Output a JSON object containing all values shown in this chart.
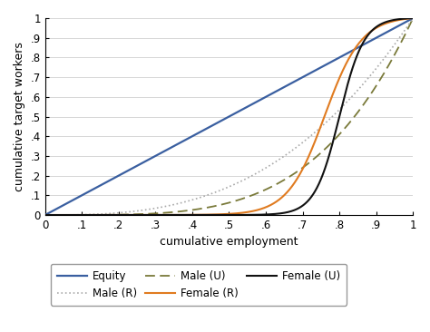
{
  "title": "",
  "xlabel": "cumulative employment",
  "ylabel": "cumulative target workers",
  "xlim": [
    0,
    1
  ],
  "ylim": [
    0,
    1
  ],
  "xticks": [
    0,
    0.1,
    0.2,
    0.3,
    0.4,
    0.5,
    0.6,
    0.7,
    0.8,
    0.9,
    1.0
  ],
  "yticks": [
    0,
    0.1,
    0.2,
    0.3,
    0.4,
    0.5,
    0.6,
    0.7,
    0.8,
    0.9,
    1.0
  ],
  "xtick_labels": [
    "0",
    ".1",
    ".2",
    ".3",
    ".4",
    ".5",
    ".6",
    ".7",
    ".8",
    ".9",
    "1"
  ],
  "ytick_labels": [
    "0",
    ".1",
    ".2",
    ".3",
    ".4",
    ".5",
    ".6",
    ".7",
    ".8",
    ".9",
    "1"
  ],
  "equity_color": "#3a5fa0",
  "male_r_color": "#aaaaaa",
  "male_u_color": "#7a7a3a",
  "female_r_color": "#e07b20",
  "female_u_color": "#111111",
  "grid_color": "#d0d0d0",
  "background_color": "#ffffff",
  "legend_fontsize": 8.5,
  "axis_fontsize": 9,
  "tick_fontsize": 8.5
}
